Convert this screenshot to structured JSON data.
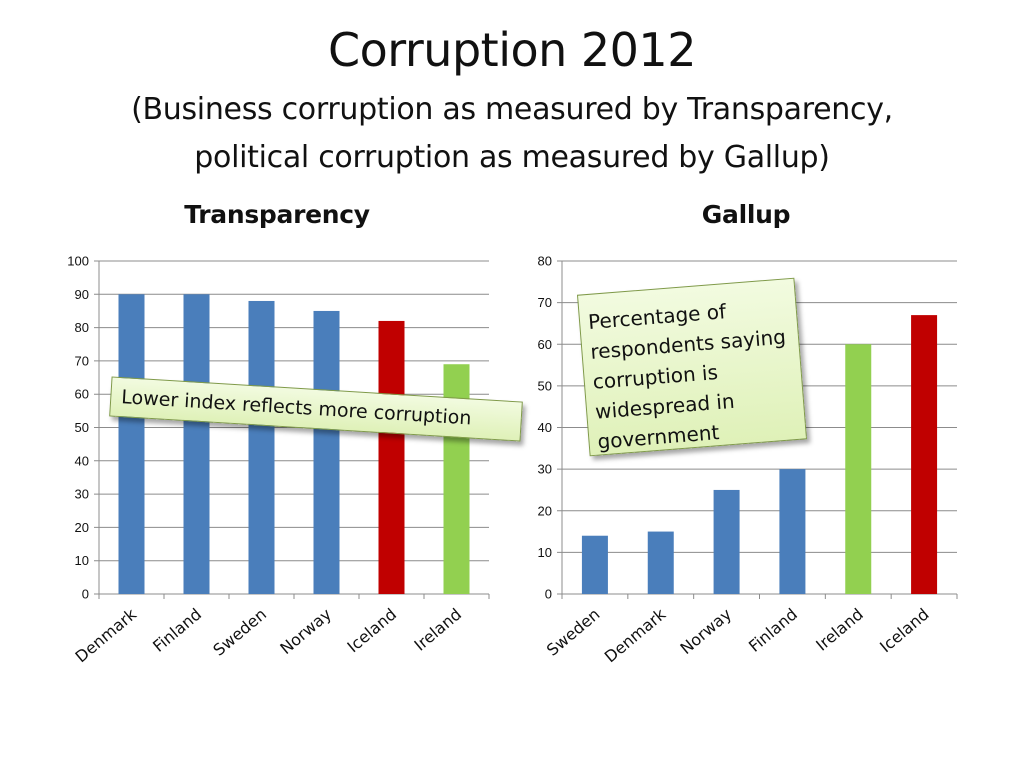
{
  "slide": {
    "title": "Corruption 2012",
    "subtitle_line1": "(Business corruption as measured by Transparency,",
    "subtitle_line2": "political corruption as measured by Gallup)"
  },
  "colors": {
    "blue": "#4a7ebb",
    "red": "#c00000",
    "green": "#92d050",
    "grid": "#8c8c8c",
    "callout_fill": "#e6f5c9",
    "callout_border": "#7f9a48"
  },
  "callouts": {
    "transparency_note": "Lower index reflects more corruption",
    "gallup_note": "Percentage of respondents saying corruption is widespread in government"
  },
  "chart_data": [
    {
      "type": "bar",
      "title": "Transparency",
      "xlabel": "",
      "ylabel": "",
      "ylim": [
        0,
        100
      ],
      "yticks": [
        0,
        10,
        20,
        30,
        40,
        50,
        60,
        70,
        80,
        90,
        100
      ],
      "grid": true,
      "categories": [
        "Denmark",
        "Finland",
        "Sweden",
        "Norway",
        "Iceland",
        "Ireland"
      ],
      "values": [
        90,
        90,
        88,
        85,
        82,
        69
      ],
      "bar_colors": [
        "#4a7ebb",
        "#4a7ebb",
        "#4a7ebb",
        "#4a7ebb",
        "#c00000",
        "#92d050"
      ]
    },
    {
      "type": "bar",
      "title": "Gallup",
      "xlabel": "",
      "ylabel": "",
      "ylim": [
        0,
        80
      ],
      "yticks": [
        0,
        10,
        20,
        30,
        40,
        50,
        60,
        70,
        80
      ],
      "grid": true,
      "categories": [
        "Sweden",
        "Denmark",
        "Norway",
        "Finland",
        "Ireland",
        "Iceland"
      ],
      "values": [
        14,
        15,
        25,
        30,
        60,
        67
      ],
      "bar_colors": [
        "#4a7ebb",
        "#4a7ebb",
        "#4a7ebb",
        "#4a7ebb",
        "#92d050",
        "#c00000"
      ]
    }
  ]
}
